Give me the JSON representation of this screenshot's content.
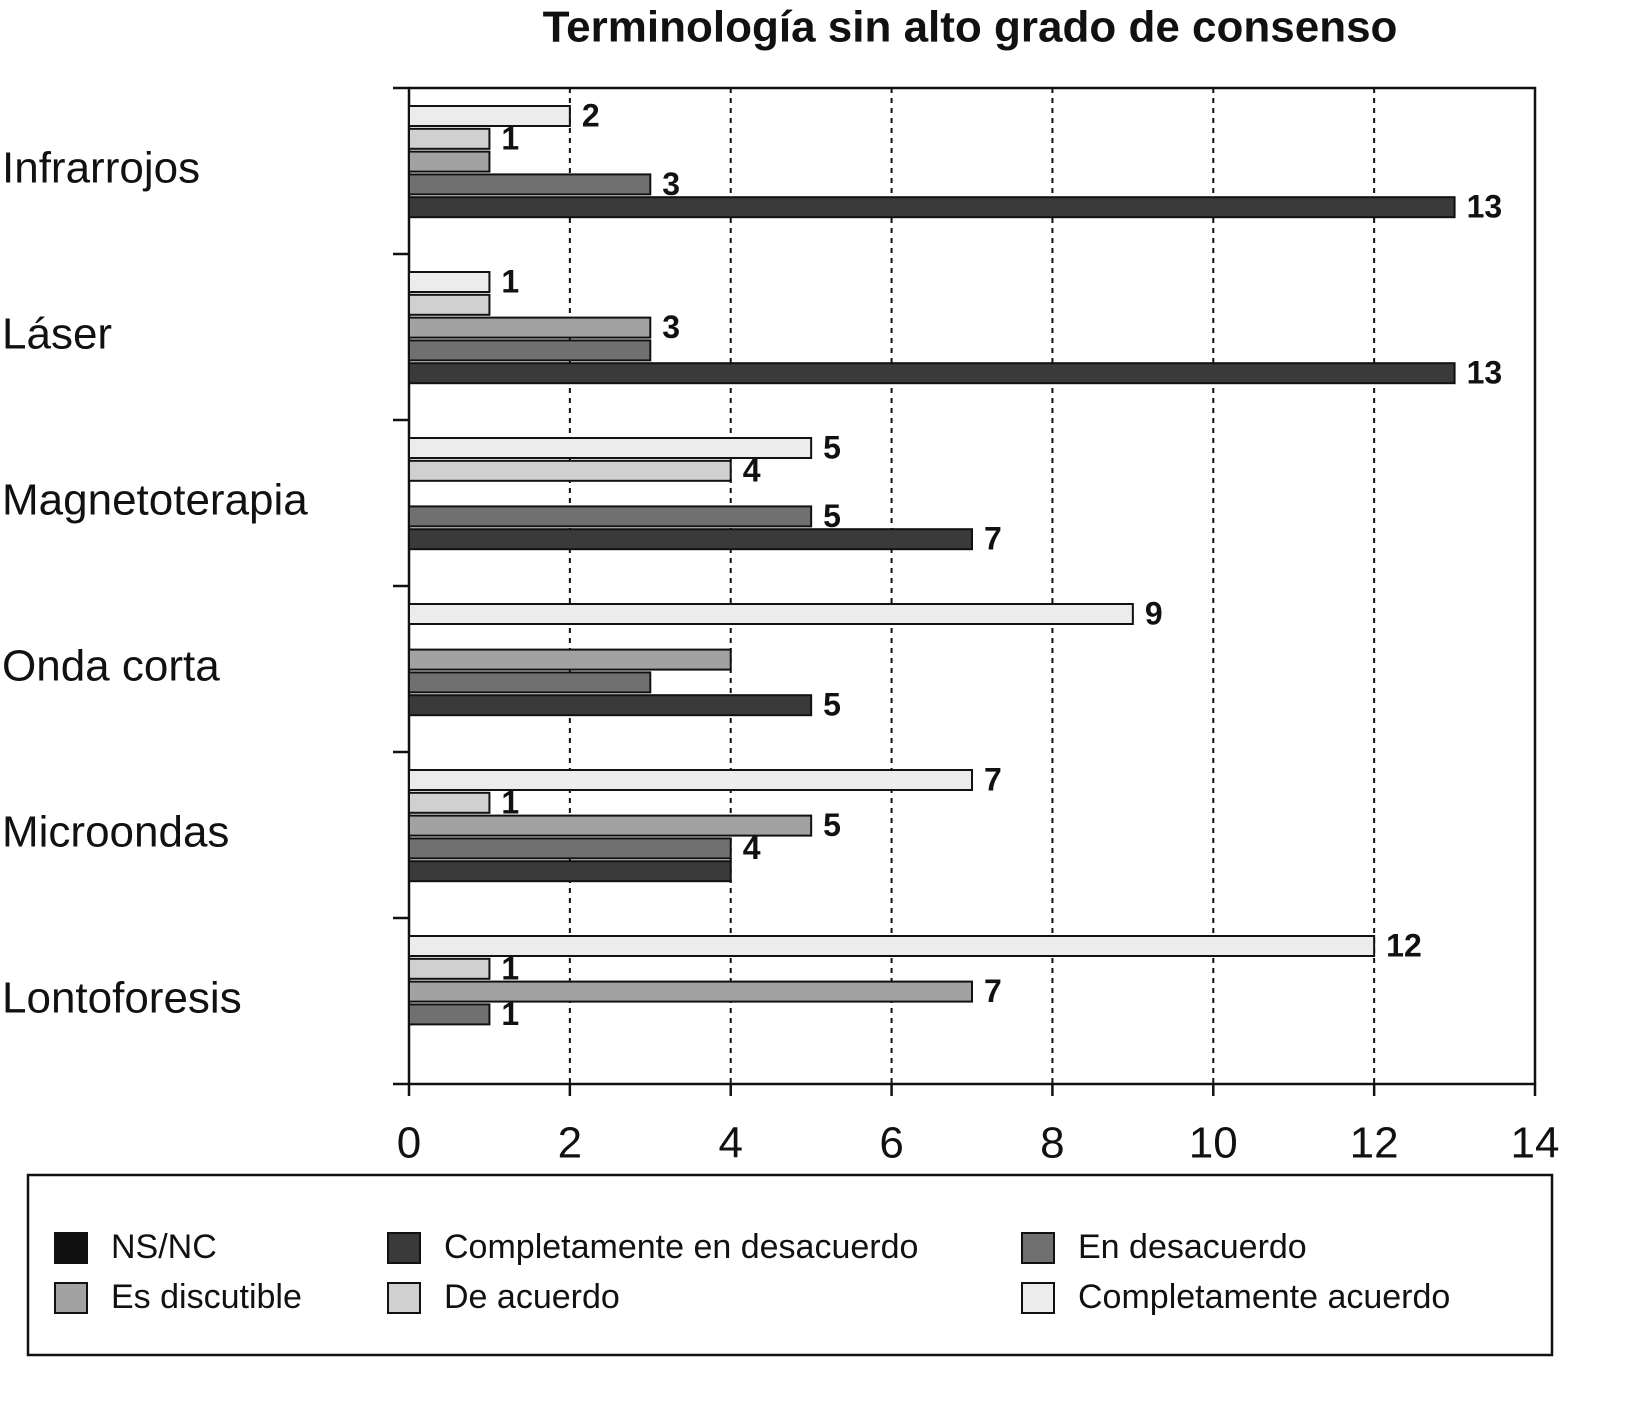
{
  "chart_data": {
    "type": "bar",
    "orientation": "horizontal",
    "title": "Terminología sin alto grado de consenso",
    "categories": [
      "Infrarrojos",
      "Láser",
      "Magnetoterapia",
      "Onda corta",
      "Microondas",
      "Lontoforesis"
    ],
    "series": [
      {
        "name": "NS/NC",
        "color": "#111111",
        "values": [
          null,
          null,
          null,
          null,
          null,
          null
        ],
        "value_labels": [
          null,
          null,
          null,
          null,
          null,
          null
        ]
      },
      {
        "name": "Completamente en desacuerdo",
        "color": "#3a3a3a",
        "values": [
          13,
          13,
          7,
          5,
          4,
          null
        ],
        "value_labels": [
          "13",
          "13",
          "7",
          "5",
          null,
          null
        ]
      },
      {
        "name": "En desacuerdo",
        "color": "#707070",
        "values": [
          3,
          3,
          5,
          3,
          4,
          1
        ],
        "value_labels": [
          "3",
          null,
          "5",
          null,
          "4",
          "1"
        ]
      },
      {
        "name": "Es discutible",
        "color": "#a2a2a2",
        "values": [
          1,
          3,
          null,
          4,
          5,
          7
        ],
        "value_labels": [
          null,
          "3",
          null,
          null,
          "5",
          "7"
        ]
      },
      {
        "name": "De acuerdo",
        "color": "#d0d0d0",
        "values": [
          1,
          1,
          4,
          null,
          1,
          1
        ],
        "value_labels": [
          "1",
          null,
          "4",
          null,
          "1",
          "1"
        ]
      },
      {
        "name": "Completamente acuerdo",
        "color": "#ececec",
        "values": [
          2,
          1,
          5,
          9,
          7,
          12
        ],
        "value_labels": [
          "2",
          "1",
          "5",
          "9",
          "7",
          "12"
        ]
      }
    ],
    "xlim": [
      0,
      14
    ],
    "xticks": [
      0,
      2,
      4,
      6,
      8,
      10,
      12,
      14
    ],
    "grid": true
  }
}
